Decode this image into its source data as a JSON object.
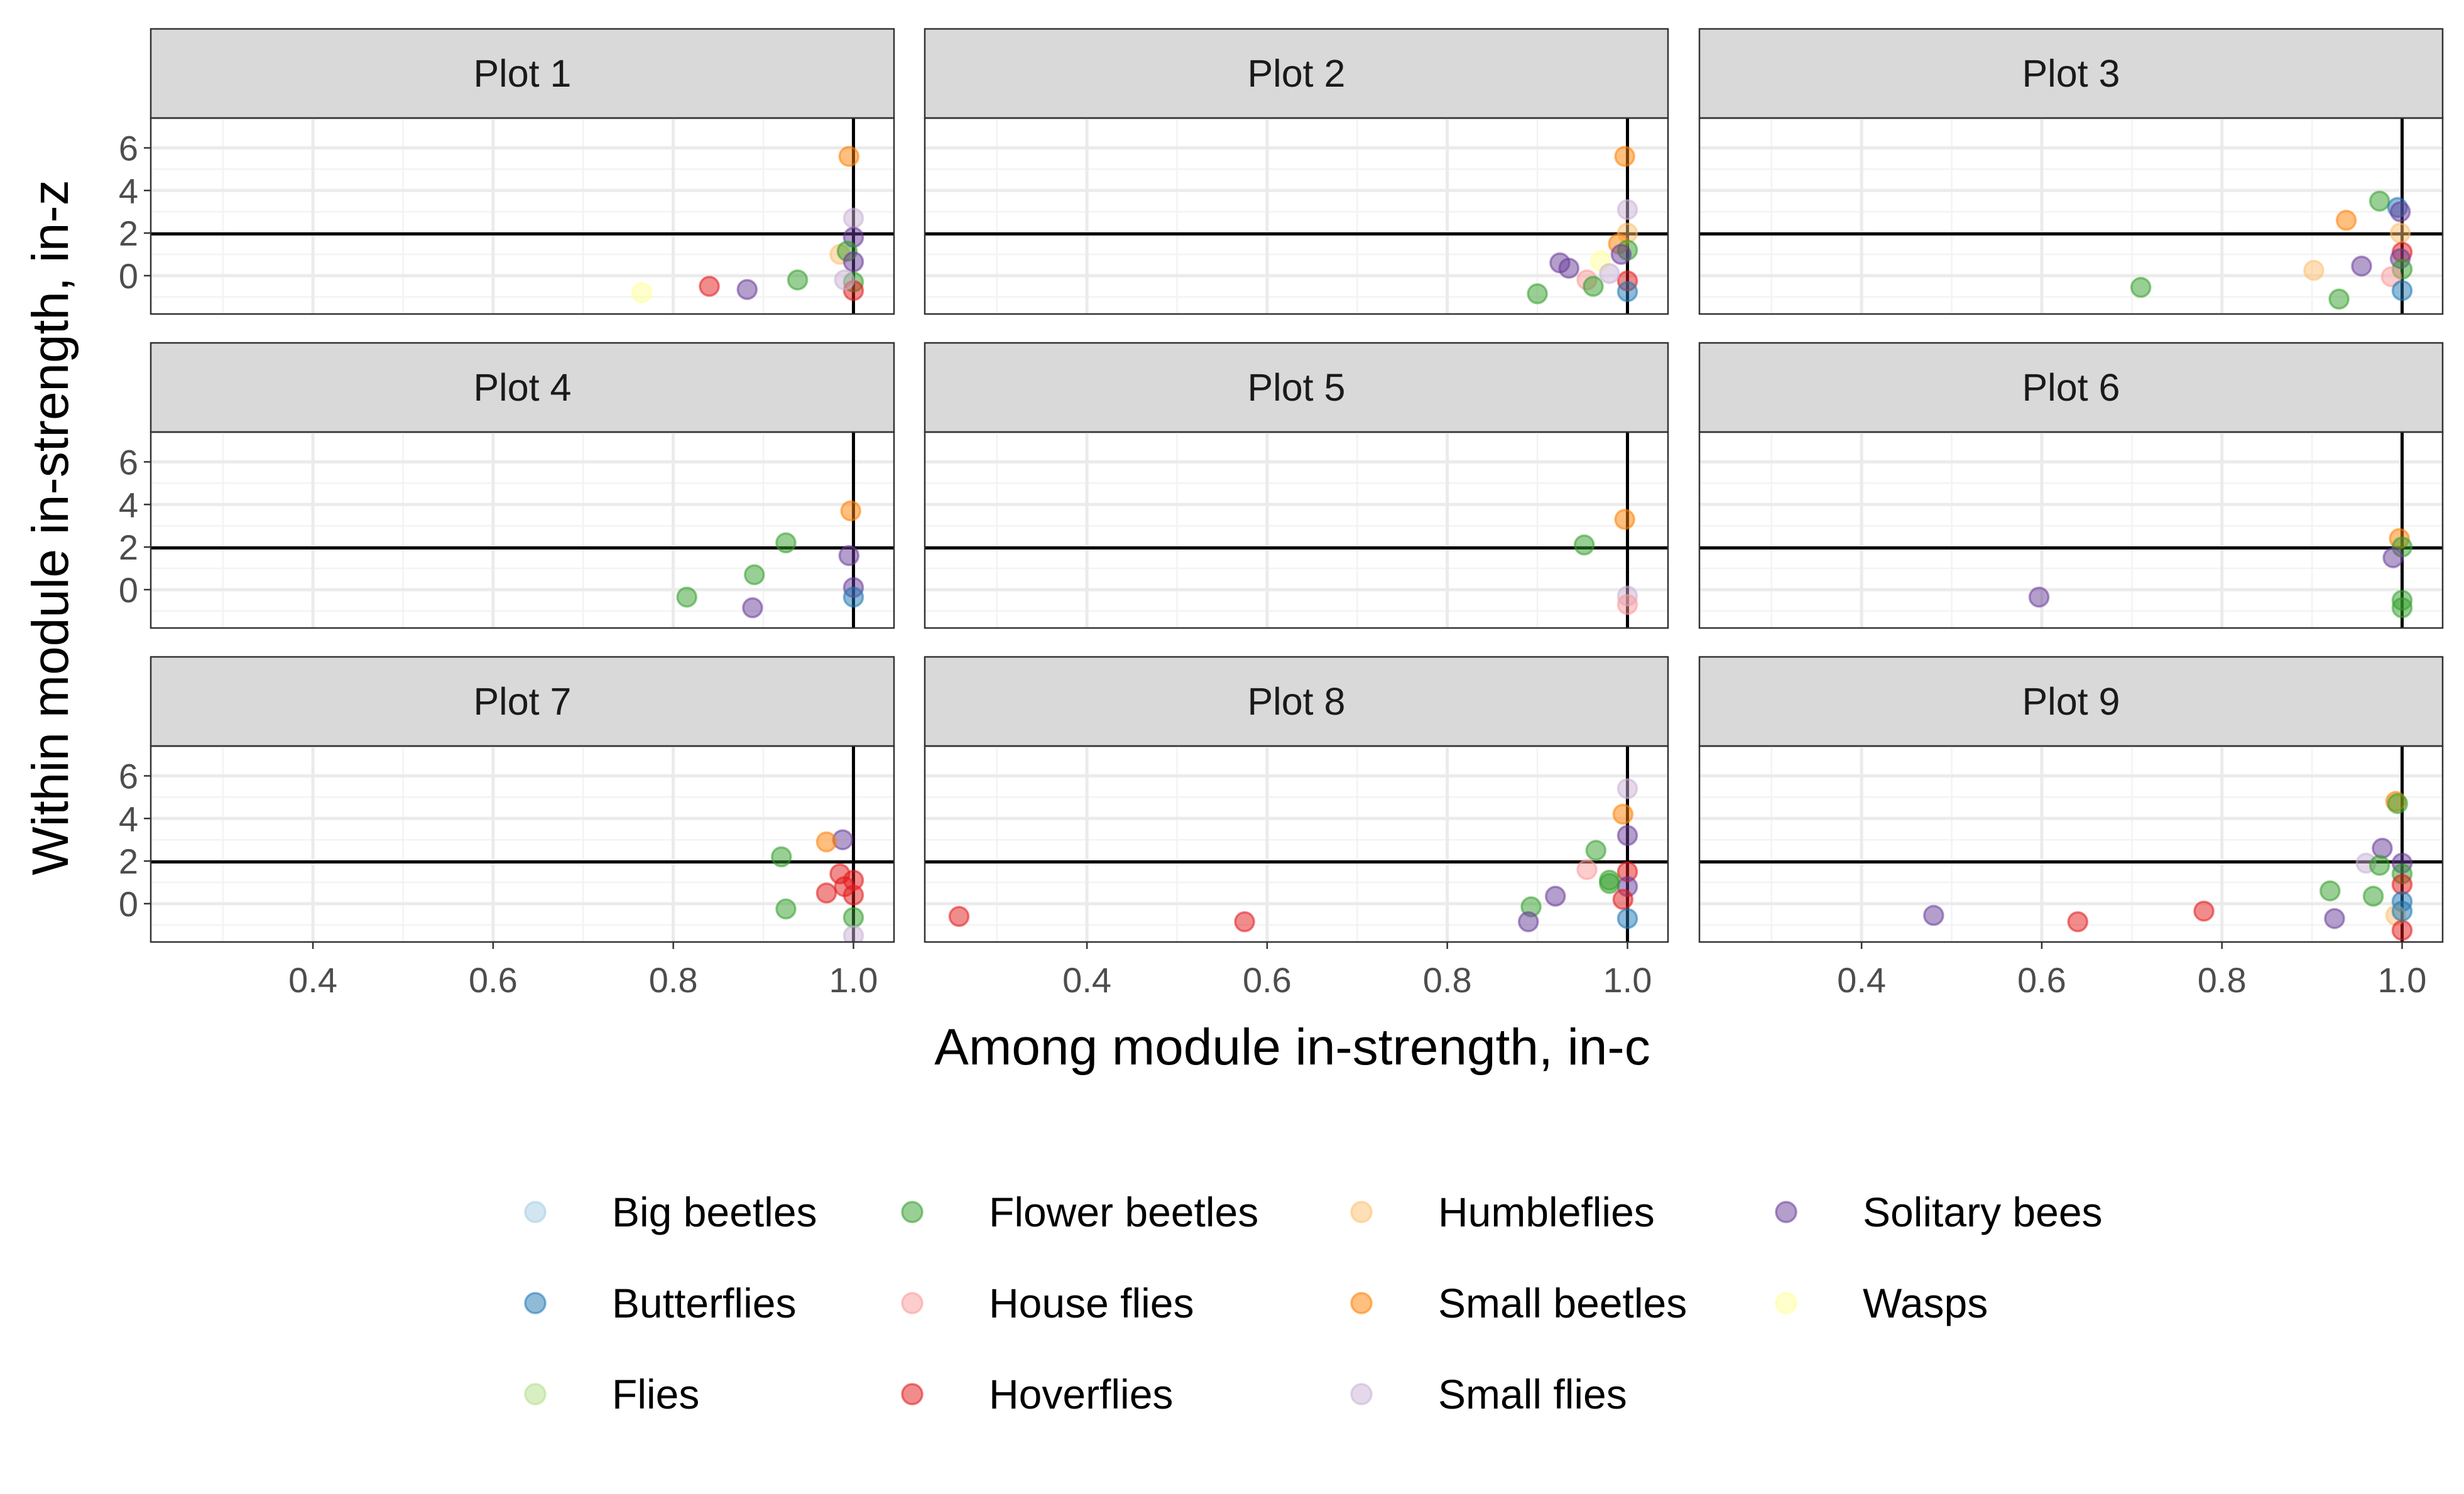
{
  "chart_data": {
    "type": "scatter",
    "xlabel": "Among module in-strength, in-c",
    "ylabel": "Within module in-strength, in-z",
    "xlim": [
      0.22,
      1.045
    ],
    "ylim": [
      -1.8,
      7.4
    ],
    "x_ticks": [
      0.4,
      0.6,
      0.8,
      1.0
    ],
    "x_tick_labels": [
      "0.4",
      "0.6",
      "0.8",
      "1.0"
    ],
    "y_ticks": [
      0,
      2,
      4,
      6
    ],
    "y_tick_labels": [
      "0",
      "2",
      "4",
      "6"
    ],
    "reference_lines": {
      "x": 1.0,
      "y": 1.96
    },
    "grid": true,
    "legend_position": "bottom",
    "colors": {
      "Big beetles": "#a6cee3",
      "Butterflies": "#1f78b4",
      "Flies": "#b2df8a",
      "Flower beetles": "#33a02c",
      "House flies": "#fb9a99",
      "Hoverflies": "#e31a1c",
      "Humbleflies": "#fdbf6f",
      "Small beetles": "#ff7f00",
      "Small flies": "#cab2d6",
      "Solitary bees": "#6a3d9a",
      "Wasps": "#ffff99"
    },
    "legend": [
      "Big beetles",
      "Butterflies",
      "Flies",
      "Flower beetles",
      "House flies",
      "Hoverflies",
      "Humbleflies",
      "Small beetles",
      "Small flies",
      "Solitary bees",
      "Wasps"
    ],
    "panels": [
      {
        "title": "Plot 1",
        "points": [
          {
            "group": "Small beetles",
            "x": 0.995,
            "y": 5.6
          },
          {
            "group": "Small flies",
            "x": 1.0,
            "y": 2.7
          },
          {
            "group": "Solitary bees",
            "x": 1.0,
            "y": 1.8
          },
          {
            "group": "Humbleflies",
            "x": 0.985,
            "y": 1.0
          },
          {
            "group": "Flower beetles",
            "x": 0.993,
            "y": 1.15
          },
          {
            "group": "Solitary bees",
            "x": 1.0,
            "y": 0.65
          },
          {
            "group": "Flower beetles",
            "x": 0.938,
            "y": -0.2
          },
          {
            "group": "Hoverflies",
            "x": 0.84,
            "y": -0.5
          },
          {
            "group": "Solitary bees",
            "x": 0.882,
            "y": -0.65
          },
          {
            "group": "Wasps",
            "x": 0.765,
            "y": -0.8
          },
          {
            "group": "Flower beetles",
            "x": 1.0,
            "y": -0.3
          },
          {
            "group": "Hoverflies",
            "x": 1.0,
            "y": -0.7
          },
          {
            "group": "Small flies",
            "x": 0.99,
            "y": -0.2
          }
        ]
      },
      {
        "title": "Plot 2",
        "points": [
          {
            "group": "Small beetles",
            "x": 0.997,
            "y": 5.6
          },
          {
            "group": "Small flies",
            "x": 1.0,
            "y": 3.1
          },
          {
            "group": "Humbleflies",
            "x": 1.0,
            "y": 2.0
          },
          {
            "group": "Small beetles",
            "x": 0.99,
            "y": 1.5
          },
          {
            "group": "Flower beetles",
            "x": 1.0,
            "y": 1.2
          },
          {
            "group": "Solitary bees",
            "x": 0.993,
            "y": 1.0
          },
          {
            "group": "Wasps",
            "x": 0.97,
            "y": 0.7
          },
          {
            "group": "Solitary bees",
            "x": 0.925,
            "y": 0.6
          },
          {
            "group": "Solitary bees",
            "x": 0.935,
            "y": 0.35
          },
          {
            "group": "House flies",
            "x": 0.955,
            "y": -0.2
          },
          {
            "group": "Flower beetles",
            "x": 0.962,
            "y": -0.5
          },
          {
            "group": "Flower beetles",
            "x": 0.9,
            "y": -0.85
          },
          {
            "group": "Hoverflies",
            "x": 1.0,
            "y": -0.25
          },
          {
            "group": "Butterflies",
            "x": 1.0,
            "y": -0.75
          },
          {
            "group": "Small flies",
            "x": 0.98,
            "y": 0.1
          }
        ]
      },
      {
        "title": "Plot 3",
        "points": [
          {
            "group": "Flower beetles",
            "x": 0.975,
            "y": 3.5
          },
          {
            "group": "Butterflies",
            "x": 0.995,
            "y": 3.2
          },
          {
            "group": "Solitary bees",
            "x": 0.998,
            "y": 3.0
          },
          {
            "group": "Small beetles",
            "x": 0.938,
            "y": 2.6
          },
          {
            "group": "Humbleflies",
            "x": 0.998,
            "y": 2.0
          },
          {
            "group": "Hoverflies",
            "x": 1.0,
            "y": 1.1
          },
          {
            "group": "Solitary bees",
            "x": 0.998,
            "y": 0.8
          },
          {
            "group": "Solitary bees",
            "x": 0.955,
            "y": 0.45
          },
          {
            "group": "Humbleflies",
            "x": 0.902,
            "y": 0.25
          },
          {
            "group": "Flower beetles",
            "x": 1.0,
            "y": 0.3
          },
          {
            "group": "House flies",
            "x": 0.988,
            "y": -0.05
          },
          {
            "group": "Flower beetles",
            "x": 0.71,
            "y": -0.55
          },
          {
            "group": "Flower beetles",
            "x": 0.93,
            "y": -1.1
          },
          {
            "group": "Butterflies",
            "x": 1.0,
            "y": -0.7
          }
        ]
      },
      {
        "title": "Plot 4",
        "points": [
          {
            "group": "Small beetles",
            "x": 0.997,
            "y": 3.7
          },
          {
            "group": "Flower beetles",
            "x": 0.925,
            "y": 2.2
          },
          {
            "group": "Solitary bees",
            "x": 0.995,
            "y": 1.6
          },
          {
            "group": "Flower beetles",
            "x": 0.89,
            "y": 0.7
          },
          {
            "group": "Solitary bees",
            "x": 1.0,
            "y": 0.1
          },
          {
            "group": "Flower beetles",
            "x": 0.815,
            "y": -0.35
          },
          {
            "group": "Solitary bees",
            "x": 0.888,
            "y": -0.85
          },
          {
            "group": "Butterflies",
            "x": 1.0,
            "y": -0.35
          }
        ]
      },
      {
        "title": "Plot 5",
        "points": [
          {
            "group": "Small beetles",
            "x": 0.997,
            "y": 3.3
          },
          {
            "group": "Flower beetles",
            "x": 0.952,
            "y": 2.1
          },
          {
            "group": "Small flies",
            "x": 1.0,
            "y": -0.3
          },
          {
            "group": "House flies",
            "x": 1.0,
            "y": -0.7
          }
        ]
      },
      {
        "title": "Plot 6",
        "points": [
          {
            "group": "Small beetles",
            "x": 0.997,
            "y": 2.4
          },
          {
            "group": "Flower beetles",
            "x": 1.0,
            "y": 2.0
          },
          {
            "group": "Solitary bees",
            "x": 0.99,
            "y": 1.5
          },
          {
            "group": "Solitary bees",
            "x": 0.597,
            "y": -0.35
          },
          {
            "group": "Flower beetles",
            "x": 1.0,
            "y": -0.5
          },
          {
            "group": "Flower beetles",
            "x": 1.0,
            "y": -0.85
          }
        ]
      },
      {
        "title": "Plot 7",
        "points": [
          {
            "group": "Solitary bees",
            "x": 0.988,
            "y": 3.0
          },
          {
            "group": "Small beetles",
            "x": 0.97,
            "y": 2.9
          },
          {
            "group": "Flower beetles",
            "x": 0.92,
            "y": 2.2
          },
          {
            "group": "Hoverflies",
            "x": 0.985,
            "y": 1.4
          },
          {
            "group": "Hoverflies",
            "x": 1.0,
            "y": 1.1
          },
          {
            "group": "Hoverflies",
            "x": 0.99,
            "y": 0.8
          },
          {
            "group": "Hoverflies",
            "x": 0.97,
            "y": 0.5
          },
          {
            "group": "Hoverflies",
            "x": 1.0,
            "y": 0.4
          },
          {
            "group": "Flower beetles",
            "x": 0.925,
            "y": -0.25
          },
          {
            "group": "Flower beetles",
            "x": 1.0,
            "y": -0.65
          },
          {
            "group": "Small flies",
            "x": 1.0,
            "y": -1.5
          }
        ]
      },
      {
        "title": "Plot 8",
        "points": [
          {
            "group": "Small flies",
            "x": 1.0,
            "y": 5.4
          },
          {
            "group": "Small beetles",
            "x": 0.995,
            "y": 4.2
          },
          {
            "group": "Solitary bees",
            "x": 1.0,
            "y": 3.2
          },
          {
            "group": "Flower beetles",
            "x": 0.965,
            "y": 2.5
          },
          {
            "group": "House flies",
            "x": 0.955,
            "y": 1.6
          },
          {
            "group": "Hoverflies",
            "x": 1.0,
            "y": 1.5
          },
          {
            "group": "Flower beetles",
            "x": 0.98,
            "y": 1.1
          },
          {
            "group": "Solitary bees",
            "x": 1.0,
            "y": 0.8
          },
          {
            "group": "Hoverflies",
            "x": 0.995,
            "y": 0.2
          },
          {
            "group": "Solitary bees",
            "x": 0.92,
            "y": 0.35
          },
          {
            "group": "Flower beetles",
            "x": 0.893,
            "y": -0.15
          },
          {
            "group": "Solitary bees",
            "x": 0.89,
            "y": -0.85
          },
          {
            "group": "Hoverflies",
            "x": 0.258,
            "y": -0.6
          },
          {
            "group": "Hoverflies",
            "x": 0.575,
            "y": -0.85
          },
          {
            "group": "Butterflies",
            "x": 1.0,
            "y": -0.7
          },
          {
            "group": "Flower beetles",
            "x": 0.98,
            "y": 0.95
          }
        ]
      },
      {
        "title": "Plot 9",
        "points": [
          {
            "group": "Small beetles",
            "x": 0.993,
            "y": 4.8
          },
          {
            "group": "Flower beetles",
            "x": 0.995,
            "y": 4.7
          },
          {
            "group": "Solitary bees",
            "x": 0.978,
            "y": 2.6
          },
          {
            "group": "Solitary bees",
            "x": 1.0,
            "y": 1.9
          },
          {
            "group": "Small flies",
            "x": 0.96,
            "y": 1.9
          },
          {
            "group": "Flower beetles",
            "x": 0.975,
            "y": 1.8
          },
          {
            "group": "Flower beetles",
            "x": 1.0,
            "y": 1.4
          },
          {
            "group": "Hoverflies",
            "x": 1.0,
            "y": 0.9
          },
          {
            "group": "Flower beetles",
            "x": 0.92,
            "y": 0.6
          },
          {
            "group": "Flower beetles",
            "x": 0.968,
            "y": 0.35
          },
          {
            "group": "Butterflies",
            "x": 1.0,
            "y": 0.1
          },
          {
            "group": "Humbleflies",
            "x": 0.993,
            "y": -0.55
          },
          {
            "group": "Hoverflies",
            "x": 0.78,
            "y": -0.35
          },
          {
            "group": "Solitary bees",
            "x": 0.925,
            "y": -0.7
          },
          {
            "group": "Solitary bees",
            "x": 0.48,
            "y": -0.55
          },
          {
            "group": "Hoverflies",
            "x": 0.64,
            "y": -0.85
          },
          {
            "group": "Hoverflies",
            "x": 1.0,
            "y": -1.25
          },
          {
            "group": "Butterflies",
            "x": 1.0,
            "y": -0.35
          }
        ]
      }
    ]
  }
}
